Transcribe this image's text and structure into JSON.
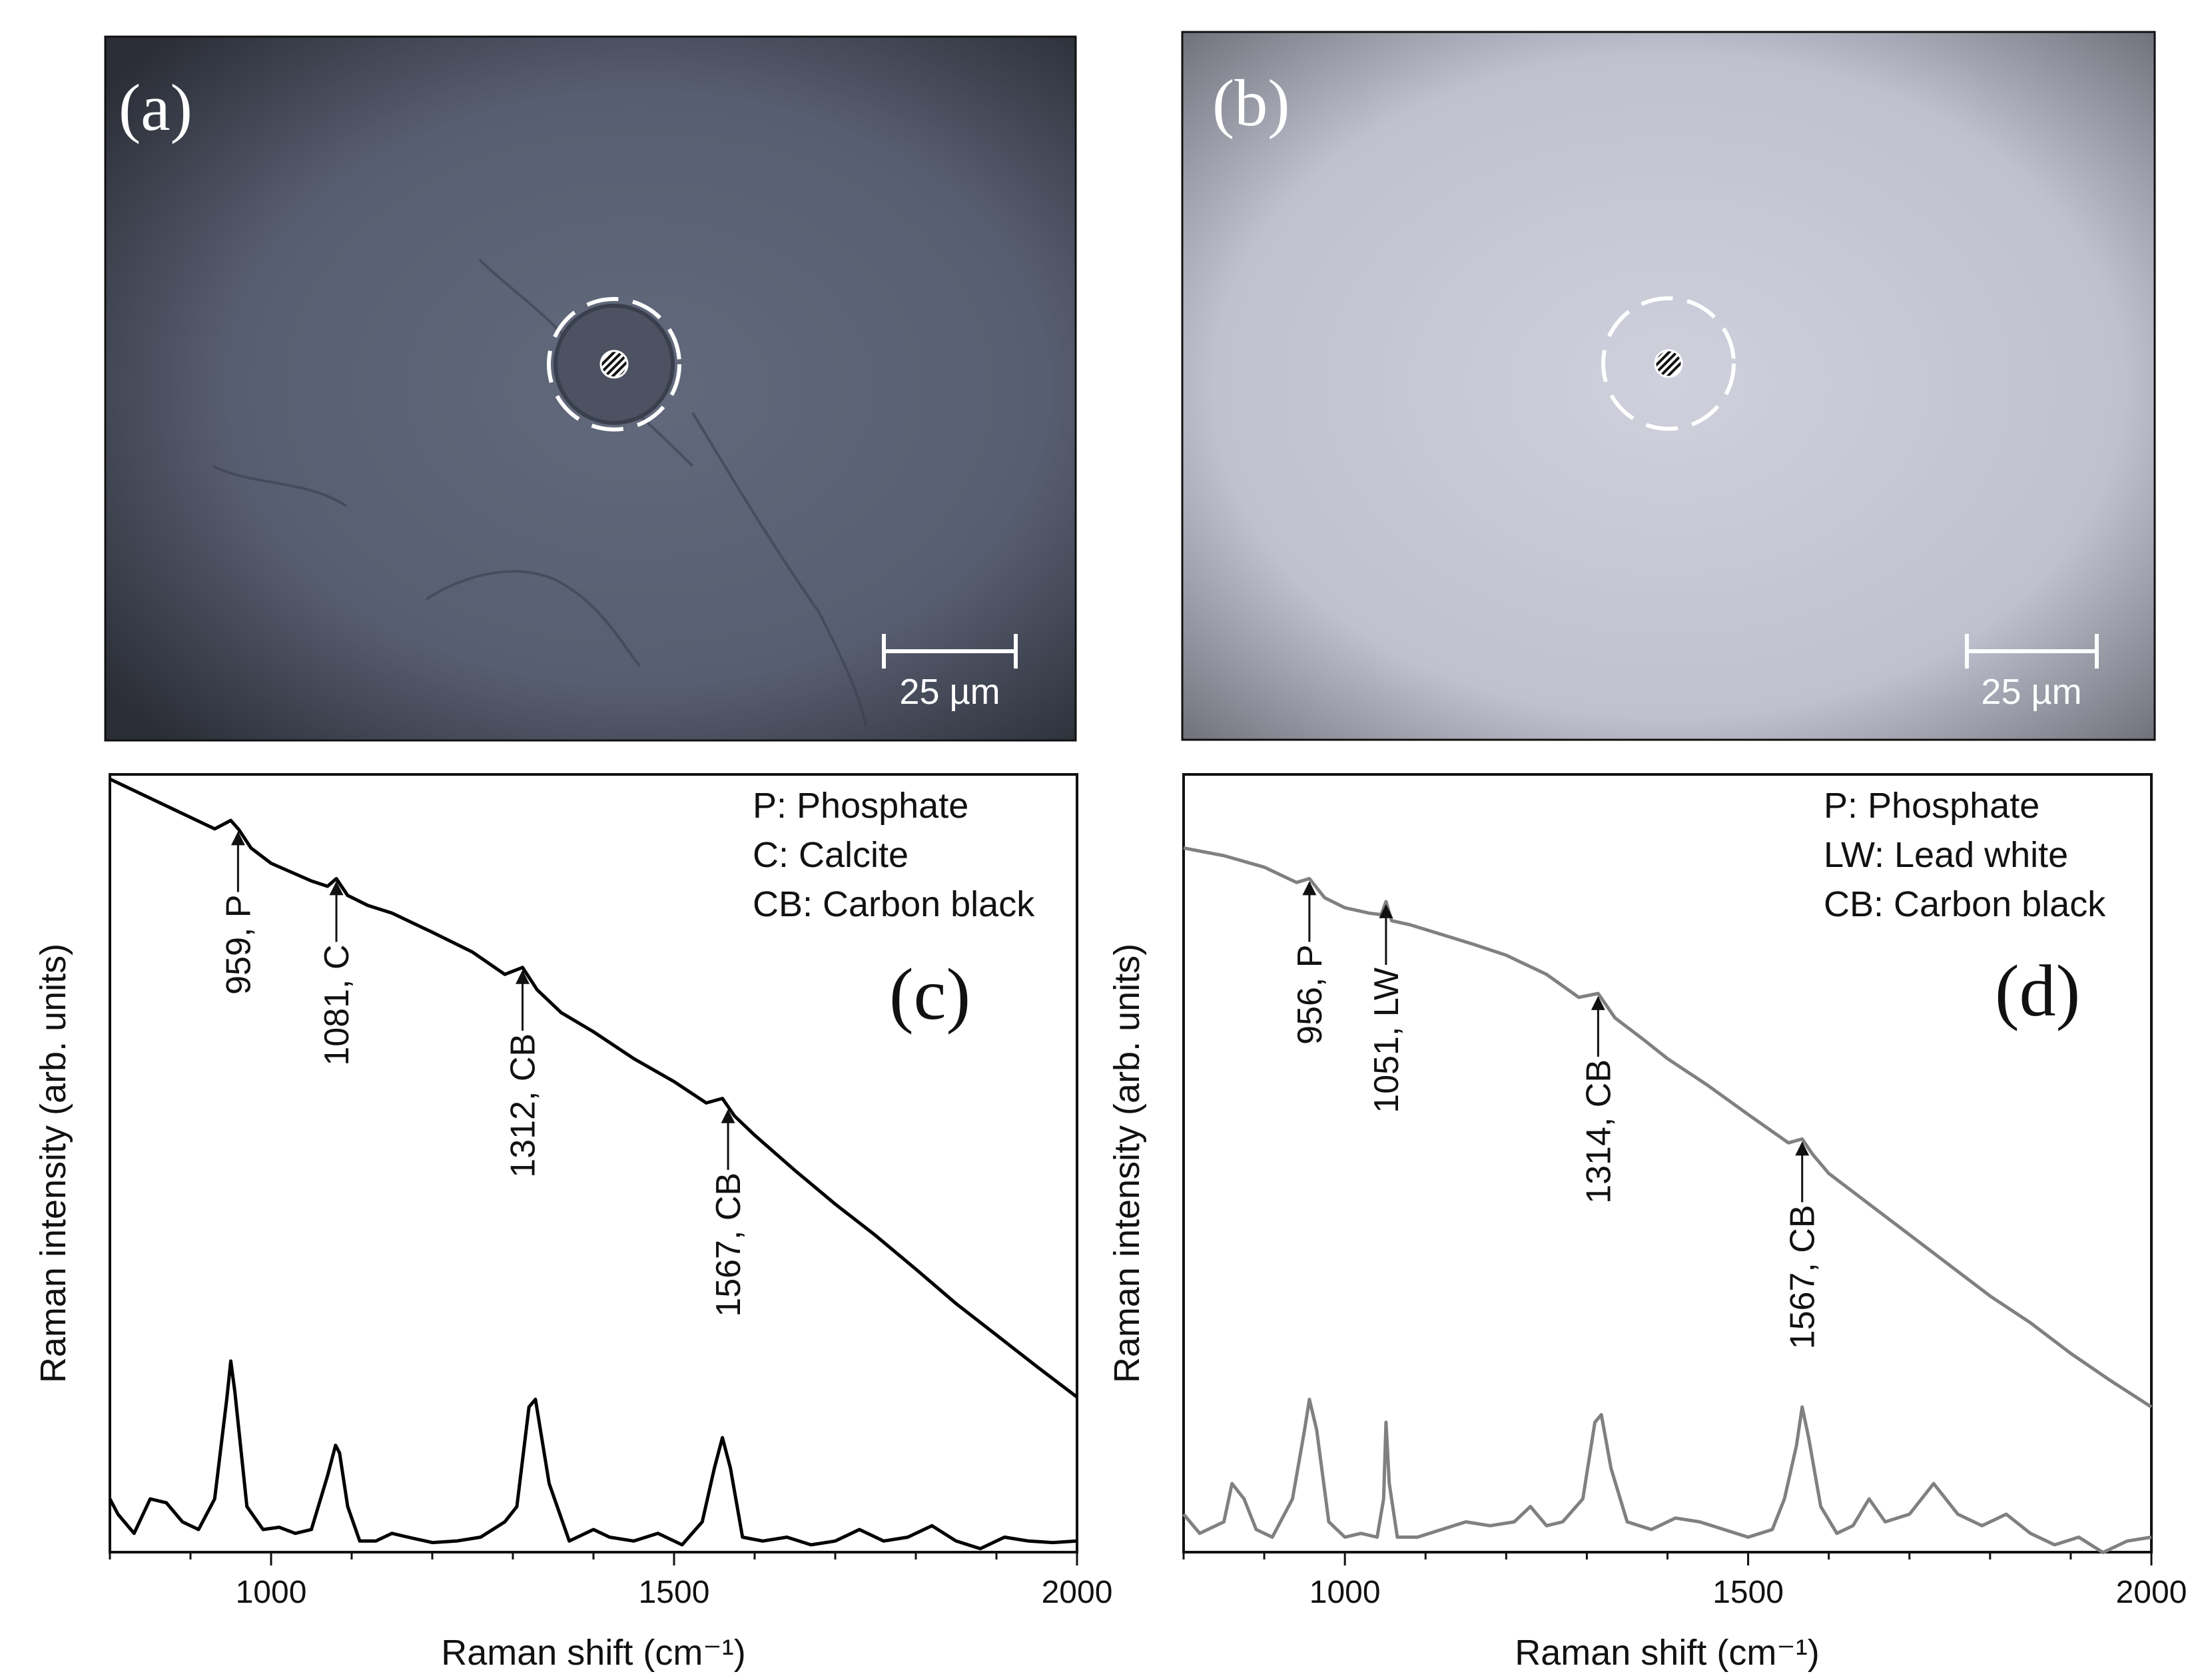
{
  "micrographs": [
    {
      "letter": "(a)",
      "scale_bar": "25 µm",
      "background": "dark blue-grey"
    },
    {
      "letter": "(b)",
      "scale_bar": "25 µm",
      "background": "light grey"
    }
  ],
  "chart_data": [
    {
      "type": "line",
      "panel": "(c)",
      "xlabel": "Raman shift (cm⁻¹)",
      "ylabel": "Raman intensity (arb. units)",
      "xlim": [
        800,
        2000
      ],
      "xticks": [
        1000,
        1500,
        2000
      ],
      "yticks": [],
      "grid": false,
      "legend_location": "top-right",
      "legend": [
        "P: Phosphate",
        "C: Calcite",
        "CB: Carbon black"
      ],
      "color": "#000000",
      "peaks": [
        {
          "label": "959, P",
          "x": 959
        },
        {
          "label": "1081, C",
          "x": 1081
        },
        {
          "label": "1312, CB",
          "x": 1312
        },
        {
          "label": "1567, CB",
          "x": 1567
        }
      ],
      "series": [
        {
          "x": [
            800,
            850,
            900,
            930,
            950,
            960,
            975,
            1000,
            1050,
            1070,
            1081,
            1095,
            1120,
            1150,
            1200,
            1250,
            1290,
            1312,
            1330,
            1360,
            1400,
            1450,
            1500,
            1540,
            1560,
            1575,
            1600,
            1650,
            1700,
            1750,
            1800,
            1850,
            1900,
            1950,
            2000
          ],
          "y": [
            100,
            97.5,
            95,
            93.5,
            94.6,
            93.4,
            91,
            89,
            86.7,
            86,
            87,
            84.8,
            83.5,
            82.5,
            80,
            77.4,
            74.5,
            75.4,
            72.5,
            69.5,
            67,
            63.5,
            60.5,
            57.7,
            58.3,
            56,
            53.5,
            48.9,
            44.5,
            40.4,
            36,
            31.5,
            27.4,
            23.3,
            19.3
          ]
        },
        {
          "x": [
            800,
            810,
            830,
            850,
            870,
            890,
            910,
            930,
            945,
            950,
            955,
            970,
            990,
            1010,
            1030,
            1050,
            1070,
            1080,
            1085,
            1095,
            1110,
            1130,
            1150,
            1170,
            1200,
            1230,
            1260,
            1290,
            1305,
            1320,
            1328,
            1345,
            1370,
            1400,
            1420,
            1450,
            1480,
            1510,
            1535,
            1550,
            1560,
            1570,
            1585,
            1610,
            1640,
            1670,
            1700,
            1730,
            1760,
            1790,
            1820,
            1850,
            1880,
            1910,
            1940,
            1970,
            2000
          ],
          "y": [
            6,
            4,
            1.5,
            6,
            5.5,
            3,
            2,
            6,
            19,
            24,
            20,
            5,
            2,
            2.3,
            1.5,
            2,
            9,
            13,
            12,
            5,
            0.5,
            0.5,
            1.5,
            1,
            0.3,
            0.5,
            1,
            3,
            5,
            18,
            19,
            8,
            0.5,
            2,
            1,
            0.5,
            1.5,
            0,
            3,
            10,
            14,
            10,
            1,
            0.5,
            1,
            0,
            0.5,
            2,
            0.5,
            1,
            2.5,
            0.5,
            -0.5,
            1,
            0.5,
            0.3,
            0.5
          ]
        }
      ]
    },
    {
      "type": "line",
      "panel": "(d)",
      "xlabel": "Raman shift (cm⁻¹)",
      "ylabel": "Raman intensity (arb. units)",
      "xlim": [
        800,
        2000
      ],
      "xticks": [
        1000,
        1500,
        2000
      ],
      "yticks": [],
      "grid": false,
      "legend_location": "top-right",
      "legend": [
        "P: Phosphate",
        "LW: Lead white",
        "CB: Carbon black"
      ],
      "color": "#808080",
      "peaks": [
        {
          "label": "956, P",
          "x": 956
        },
        {
          "label": "1051, LW",
          "x": 1051
        },
        {
          "label": "1314, CB",
          "x": 1314
        },
        {
          "label": "1567, CB",
          "x": 1567
        }
      ],
      "series": [
        {
          "x": [
            800,
            850,
            900,
            940,
            956,
            975,
            1000,
            1030,
            1045,
            1051,
            1058,
            1080,
            1120,
            1160,
            1200,
            1250,
            1290,
            1314,
            1335,
            1370,
            1400,
            1450,
            1500,
            1550,
            1567,
            1580,
            1600,
            1650,
            1700,
            1750,
            1800,
            1850,
            1900,
            1950,
            2000
          ],
          "y": [
            91,
            90,
            88.5,
            86.5,
            87,
            84.5,
            83.2,
            82.5,
            82.3,
            84,
            81.5,
            81,
            79.7,
            78.4,
            77,
            74.5,
            71.5,
            72,
            68.8,
            66,
            63.5,
            60,
            56.2,
            52.5,
            53,
            51,
            48.5,
            44.5,
            40.5,
            36.5,
            32.5,
            29,
            25,
            21.4,
            18
          ]
        },
        {
          "x": [
            800,
            820,
            850,
            860,
            875,
            890,
            910,
            935,
            950,
            956,
            965,
            980,
            1000,
            1020,
            1040,
            1048,
            1051,
            1055,
            1065,
            1090,
            1120,
            1150,
            1180,
            1210,
            1230,
            1250,
            1270,
            1295,
            1310,
            1318,
            1330,
            1350,
            1380,
            1410,
            1440,
            1470,
            1500,
            1530,
            1545,
            1560,
            1567,
            1575,
            1590,
            1610,
            1630,
            1650,
            1670,
            1700,
            1730,
            1760,
            1790,
            1820,
            1850,
            1880,
            1910,
            1940,
            1970,
            2000
          ],
          "y": [
            4,
            1.5,
            3,
            8,
            6,
            2,
            1,
            6,
            15,
            19,
            15,
            3,
            1,
            1.5,
            1,
            6,
            16,
            8,
            1,
            1,
            2,
            3,
            2.5,
            3,
            5,
            2.5,
            3,
            6,
            16,
            17,
            10,
            3,
            2,
            3.5,
            3,
            2,
            1,
            2,
            6,
            13,
            18,
            14,
            5,
            1.5,
            2.5,
            6,
            3,
            4,
            8,
            4,
            2.5,
            4,
            1.5,
            0,
            1,
            -1,
            0.5,
            1
          ]
        }
      ]
    }
  ]
}
